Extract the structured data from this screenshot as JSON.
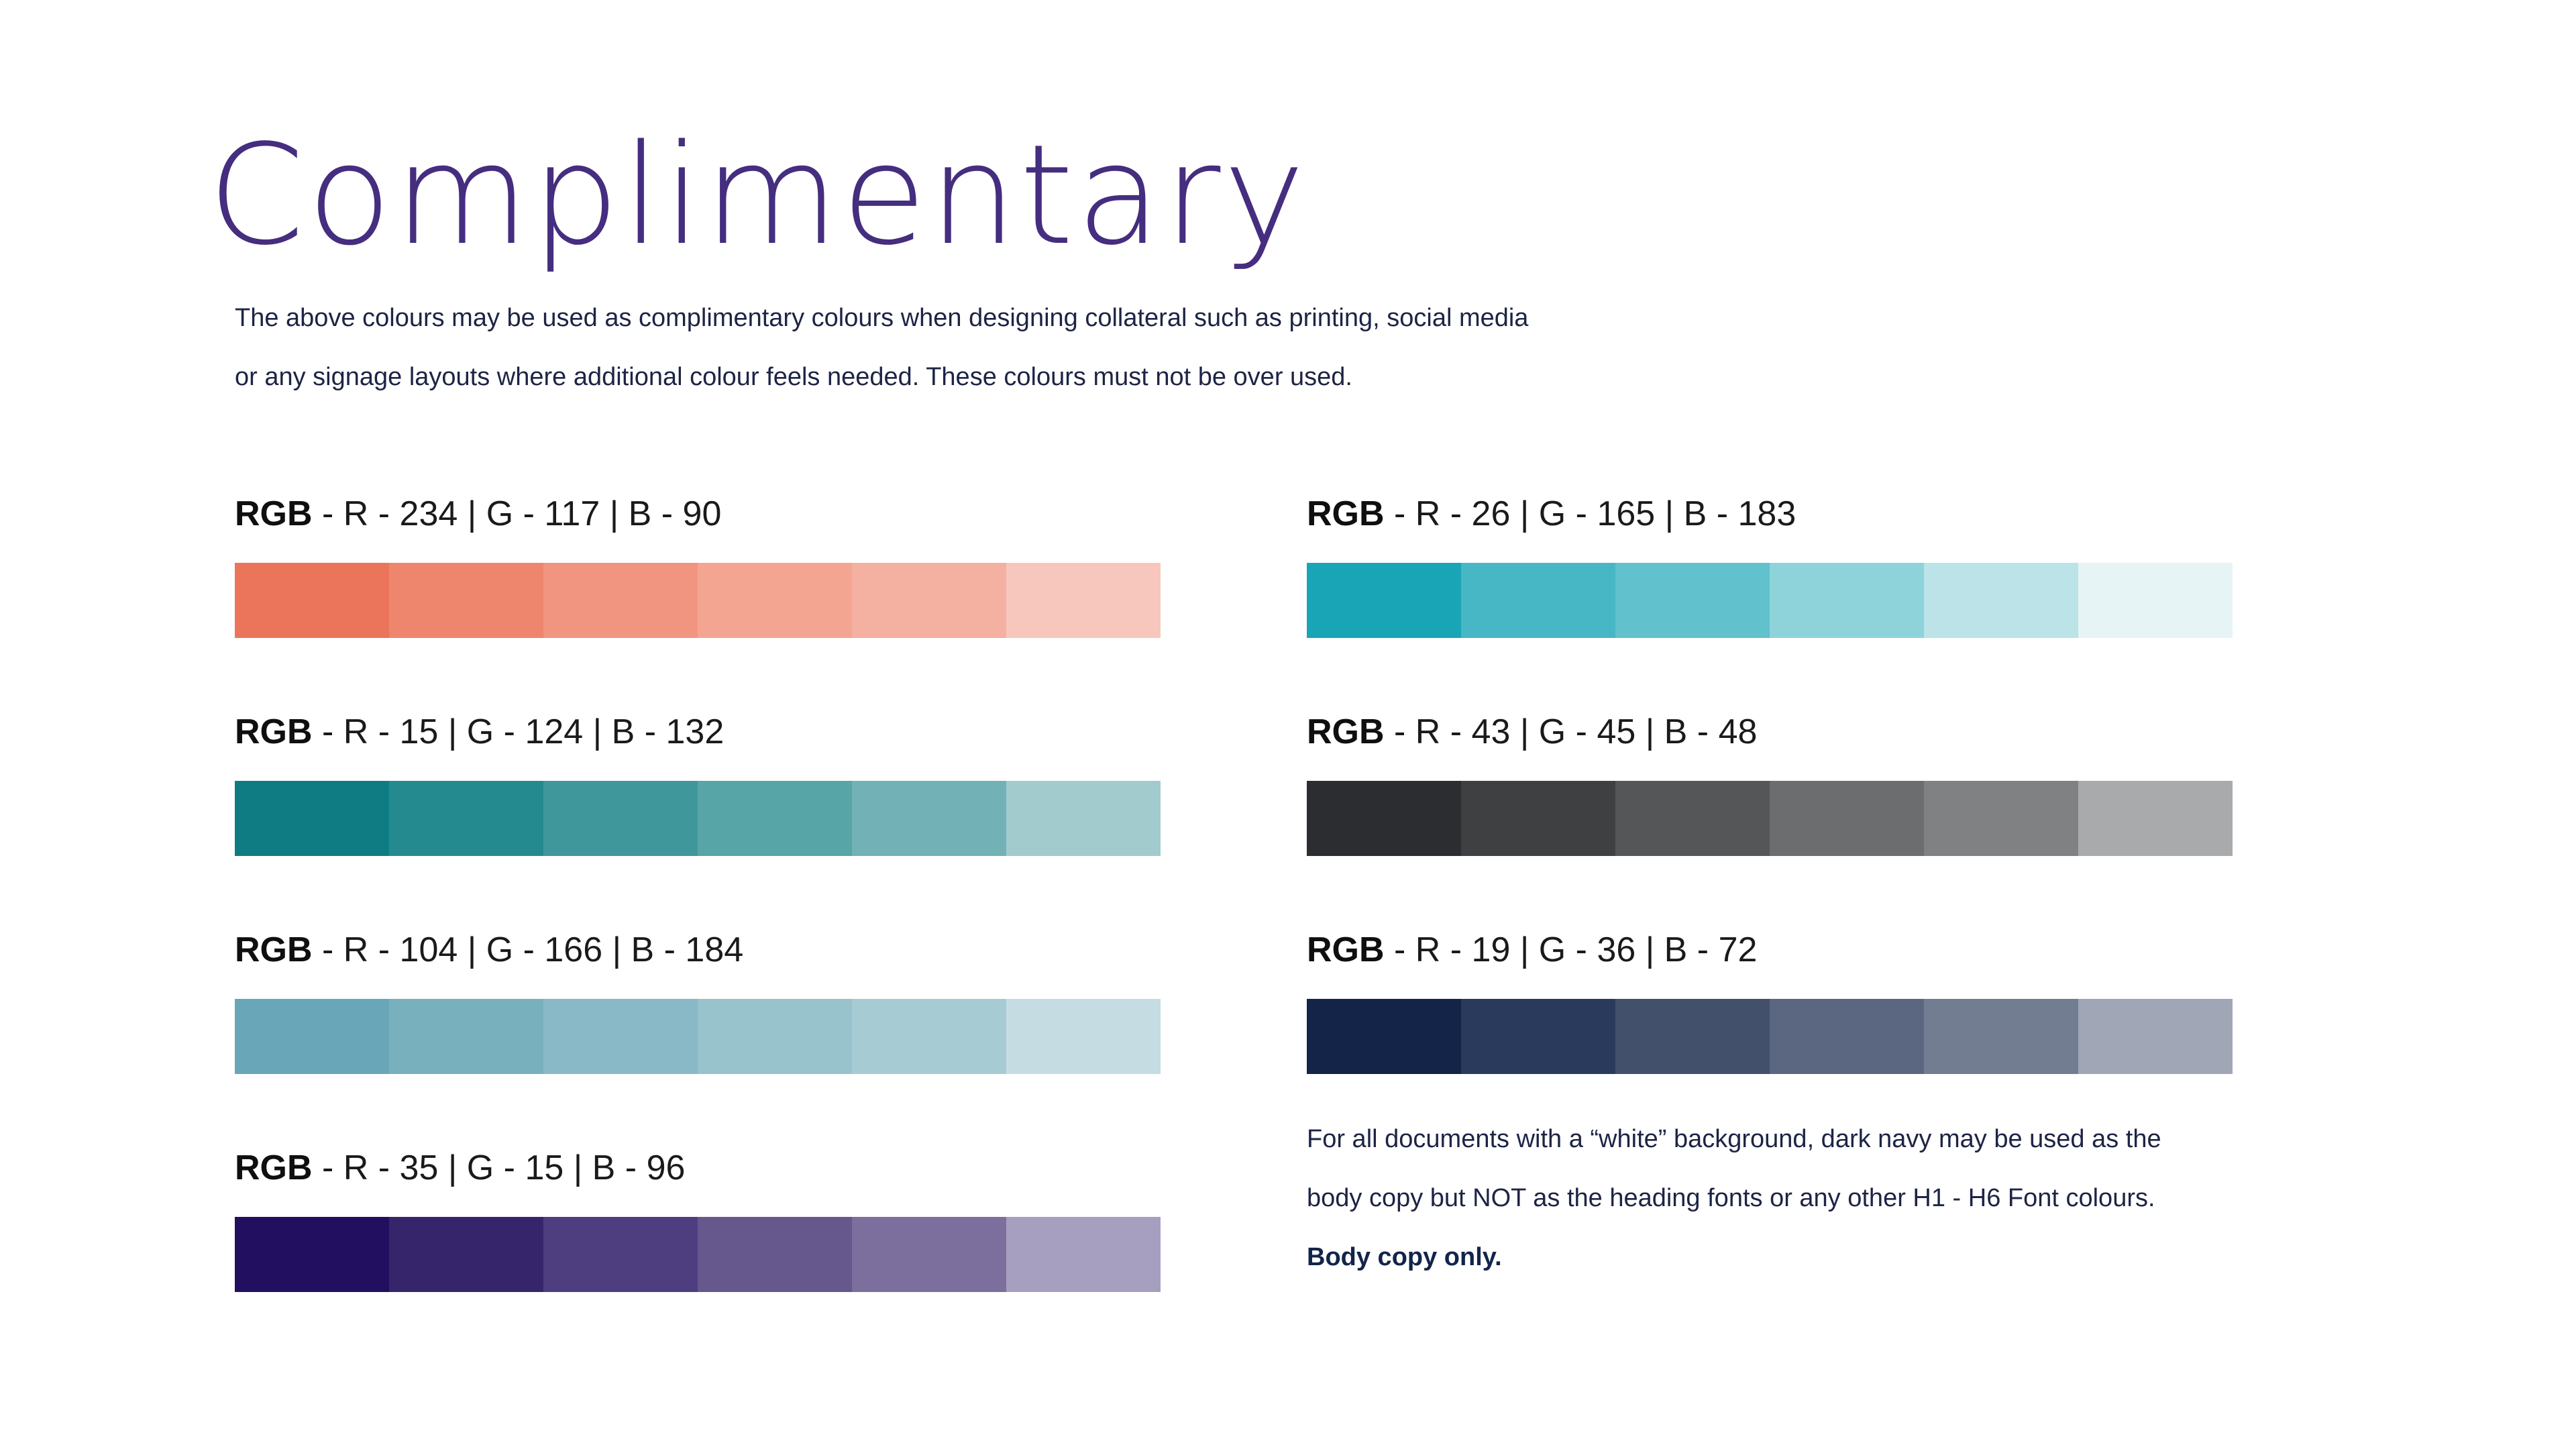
{
  "title": "Complimentary",
  "intro": {
    "line1": "The above colours may be used as complimentary colours when designing collateral such as printing, social media",
    "line2": "or any signage layouts where additional colour feels needed. These colours must not be over used."
  },
  "palettes": [
    {
      "key": "RGB",
      "value": " - R - 234 | G - 117 | B - 90",
      "swatches": [
        "#ea755a",
        "#ee866e",
        "#f19480",
        "#f3a591",
        "#f4b0a0",
        "#f7c7be"
      ]
    },
    {
      "key": "RGB",
      "value": " - R - 26 | G - 165 | B - 183",
      "swatches": [
        "#1aa5b7",
        "#48b7c5",
        "#61c1cd",
        "#8ed3da",
        "#bbe3e8",
        "#e6f4f5"
      ]
    },
    {
      "key": "RGB",
      "value": " - R - 15 | G - 124 | B - 132",
      "swatches": [
        "#0f7c84",
        "#258a8f",
        "#3f979c",
        "#57a5a7",
        "#72b2b7",
        "#a1cbcd"
      ]
    },
    {
      "key": "RGB",
      "value": " - R - 43 | G - 45 | B - 48",
      "swatches": [
        "#2b2d30",
        "#3f4042",
        "#555658",
        "#6c6d6f",
        "#808183",
        "#a9aaab"
      ]
    },
    {
      "key": "RGB",
      "value": " - R - 104 | G - 166 | B - 184",
      "swatches": [
        "#68a6b8",
        "#79b0be",
        "#89b9c6",
        "#98c2cc",
        "#a7cbd3",
        "#c4dce2"
      ]
    },
    {
      "key": "RGB",
      "value": " - R - 19 | G - 36 | B - 72",
      "swatches": [
        "#132448",
        "#2a3a5c",
        "#42506c",
        "#5b6680",
        "#737d92",
        "#a0a6b5"
      ]
    },
    {
      "key": "RGB",
      "value": " - R - 35 | G - 15 | B - 96",
      "swatches": [
        "#230f60",
        "#37256c",
        "#4f3e7f",
        "#66578c",
        "#7d6f9d",
        "#a69fbf"
      ]
    }
  ],
  "note": {
    "line1": "For all documents with a “white” background, dark navy may be used as the",
    "line2": "body copy but NOT as the heading fonts or any other H1 - H6 Font colours.",
    "line3": "Body copy only."
  }
}
